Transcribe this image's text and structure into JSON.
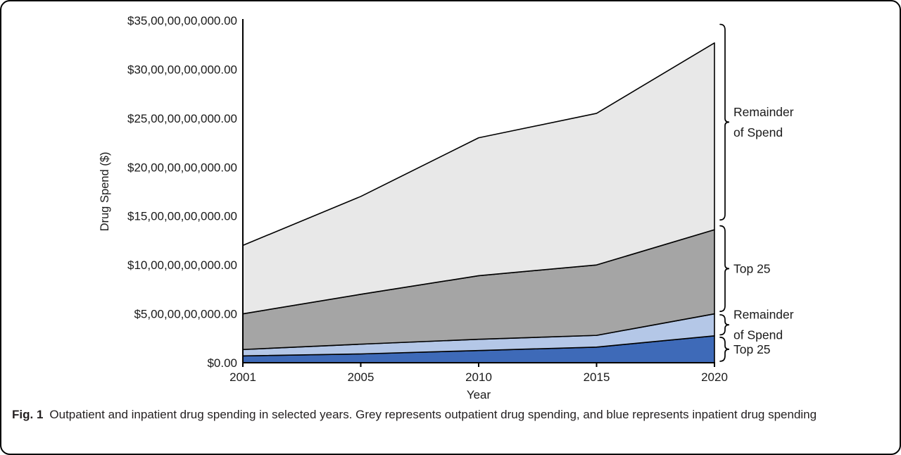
{
  "figure": {
    "caption_label": "Fig. 1",
    "caption_text": "Outpatient and inpatient drug spending in selected years. Grey represents outpatient drug spending, and blue represents inpatient drug spending"
  },
  "chart_data": {
    "type": "area",
    "stacked": true,
    "title": "",
    "xlabel": "Year",
    "ylabel": "Drug Spend ($)",
    "x_categories": [
      "2001",
      "2005",
      "2010",
      "2015",
      "2020"
    ],
    "y_tick_labels": [
      "$0.00",
      "$5,00,00,00,000.00",
      "$10,00,00,00,000.00",
      "$15,00,00,00,000.00",
      "$20,00,00,00,000.00",
      "$25,00,00,00,000.00",
      "$30,00,00,00,000.00",
      "$35,00,00,00,000.00"
    ],
    "ylim": [
      0,
      35
    ],
    "y_unit_note": "axis values in $, tick step 5,00,00,00,000",
    "grid": false,
    "legend_position": "right-brackets",
    "series": [
      {
        "name": "Top 25",
        "group": "inpatient (blue)",
        "color": "#3E6AB8",
        "values": [
          0.7,
          0.9,
          1.25,
          1.6,
          2.75
        ]
      },
      {
        "name": "Remainder of Spend",
        "group": "inpatient (blue)",
        "color": "#B4C7E7",
        "values": [
          0.65,
          1.0,
          1.15,
          1.2,
          2.25
        ]
      },
      {
        "name": "Top 25",
        "group": "outpatient (grey)",
        "color": "#A5A5A5",
        "values": [
          3.65,
          5.1,
          6.5,
          7.2,
          8.6
        ]
      },
      {
        "name": "Remainder of Spend",
        "group": "outpatient (grey)",
        "color": "#E8E8E8",
        "values": [
          7.0,
          10.0,
          14.1,
          15.5,
          19.1
        ]
      }
    ],
    "annotations": [
      {
        "lines": [
          "Remainder",
          "of Spend"
        ],
        "span_y": [
          14.6,
          34.6
        ]
      },
      {
        "lines": [
          "Top 25"
        ],
        "span_y": [
          5.25,
          14.0
        ]
      },
      {
        "lines": [
          "Remainder",
          "of Spend"
        ],
        "span_y": [
          2.85,
          4.9
        ]
      },
      {
        "lines": [
          "Top 25"
        ],
        "span_y": [
          0.15,
          2.6
        ]
      }
    ],
    "stroke_color": "#000000",
    "background": "#ffffff"
  }
}
